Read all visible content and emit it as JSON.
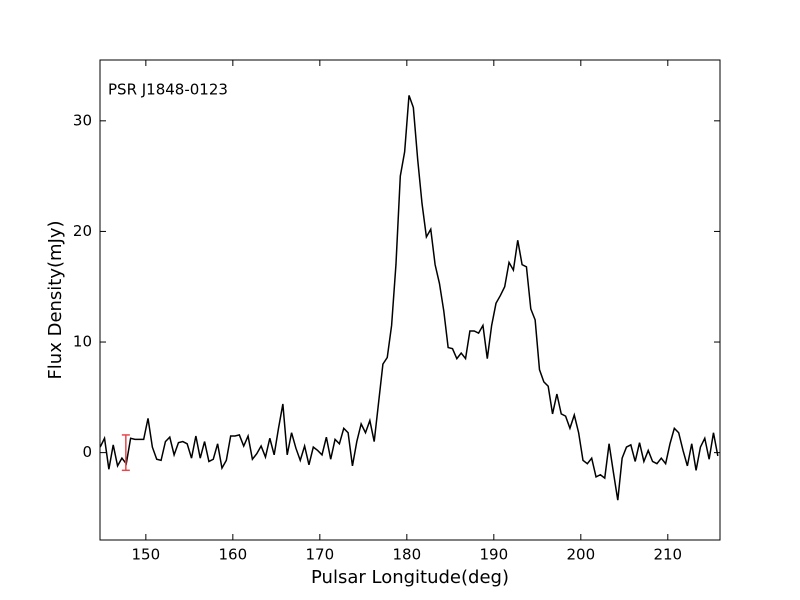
{
  "chart_data": {
    "type": "line",
    "annotation": "PSR J1848-0123",
    "xlabel": "Pulsar Longitude(deg)",
    "ylabel": "Flux Density(mJy)",
    "xlim": [
      144.73,
      216.0
    ],
    "ylim": [
      -7.9,
      35.5
    ],
    "xticks": [
      150,
      160,
      170,
      180,
      190,
      200,
      210
    ],
    "yticks": [
      0,
      10,
      20,
      30
    ],
    "grid": false,
    "x": [
      144.75,
      145.25,
      145.75,
      146.25,
      146.75,
      147.25,
      147.75,
      148.25,
      148.75,
      149.25,
      149.75,
      150.25,
      150.75,
      151.25,
      151.75,
      152.25,
      152.75,
      153.25,
      153.75,
      154.25,
      154.75,
      155.25,
      155.75,
      156.25,
      156.75,
      157.25,
      157.75,
      158.25,
      158.75,
      159.25,
      159.75,
      160.25,
      160.75,
      161.25,
      161.75,
      162.25,
      162.75,
      163.25,
      163.75,
      164.25,
      164.75,
      165.25,
      165.75,
      166.25,
      166.75,
      167.25,
      167.75,
      168.25,
      168.75,
      169.25,
      169.75,
      170.25,
      170.75,
      171.25,
      171.75,
      172.25,
      172.75,
      173.25,
      173.75,
      174.25,
      174.75,
      175.25,
      175.75,
      176.25,
      176.75,
      177.25,
      177.75,
      178.25,
      178.75,
      179.25,
      179.75,
      180.25,
      180.75,
      181.25,
      181.75,
      182.25,
      182.75,
      183.25,
      183.75,
      184.25,
      184.75,
      185.25,
      185.75,
      186.25,
      186.75,
      187.25,
      187.75,
      188.25,
      188.75,
      189.25,
      189.75,
      190.25,
      190.75,
      191.25,
      191.75,
      192.25,
      192.75,
      193.25,
      193.75,
      194.25,
      194.75,
      195.25,
      195.75,
      196.25,
      196.75,
      197.25,
      197.75,
      198.25,
      198.75,
      199.25,
      199.75,
      200.25,
      200.75,
      201.25,
      201.75,
      202.25,
      202.75,
      203.25,
      203.75,
      204.25,
      204.75,
      205.25,
      205.75,
      206.25,
      206.75,
      207.25,
      207.75,
      208.25,
      208.75,
      209.25,
      209.75,
      210.25,
      210.75,
      211.25,
      211.75,
      212.25,
      212.75,
      213.25,
      213.75,
      214.25,
      214.75,
      215.25,
      215.75
    ],
    "series": [
      {
        "color": "#000000",
        "values": [
          0.5,
          1.3,
          -1.5,
          0.7,
          -1.2,
          -0.5,
          -1.0,
          1.3,
          1.2,
          1.2,
          1.2,
          3.1,
          0.5,
          -0.6,
          -0.7,
          1.0,
          1.4,
          -0.2,
          0.9,
          1.0,
          0.8,
          -0.5,
          1.5,
          -0.5,
          1.0,
          -0.8,
          -0.6,
          0.8,
          -1.4,
          -0.7,
          1.5,
          1.5,
          1.6,
          0.6,
          1.5,
          -0.6,
          -0.1,
          0.6,
          -0.4,
          1.3,
          -0.2,
          2.2,
          4.4,
          -0.2,
          1.8,
          0.4,
          -0.7,
          0.6,
          -1.1,
          0.5,
          0.2,
          -0.2,
          1.4,
          -0.6,
          1.2,
          0.8,
          2.2,
          1.8,
          -1.2,
          1.0,
          2.6,
          1.8,
          2.9,
          1.0,
          4.5,
          8.0,
          8.6,
          11.5,
          17,
          25,
          27.2,
          32.3,
          31.2,
          26.5,
          22.5,
          19.5,
          20.2,
          17,
          15.3,
          12.8,
          9.5,
          9.4,
          8.5,
          9.0,
          8.5,
          11.0,
          11.0,
          10.8,
          11.5,
          8.5,
          11.5,
          13.5,
          14.2,
          15,
          17.2,
          16.5,
          19.2,
          17,
          16.8,
          13,
          12,
          7.5,
          6.4,
          6.0,
          3.5,
          5.3,
          3.5,
          3.3,
          2.2,
          3.4,
          1.8,
          -0.7,
          -1.0,
          -0.5,
          -2.2,
          -2.0,
          -2.3,
          0.8,
          -1.8,
          -4.3,
          -0.5,
          0.5,
          0.7,
          -0.8,
          0.9,
          -0.8,
          0.2,
          -0.8,
          -1.0,
          -0.5,
          -1.0,
          0.8,
          2.2,
          1.8,
          0.2,
          -1.2,
          0.8,
          -1.6,
          0.5,
          1.3,
          -0.6,
          1.8,
          -0.3
        ]
      }
    ],
    "errorbar": {
      "x": 147.7,
      "y": 0,
      "yerr": 1.6,
      "color": "#e8474a"
    }
  }
}
